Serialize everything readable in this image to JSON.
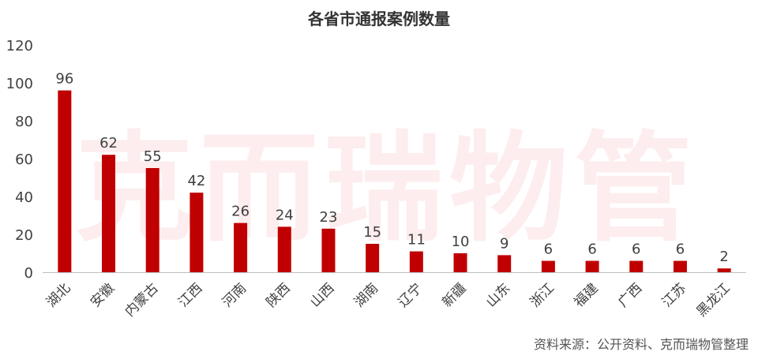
{
  "watermark": "克而瑞物管",
  "source": "资料来源：公开资料、克而瑞物管整理",
  "colors": {
    "bar": "#c00000",
    "axis": "#bfbfbf",
    "text": "#404040"
  },
  "chart_data": {
    "type": "bar",
    "title": "各省市通报案例数量",
    "xlabel": "",
    "ylabel": "",
    "ylim": [
      0,
      120
    ],
    "yticks": [
      0,
      20,
      40,
      60,
      80,
      100,
      120
    ],
    "grid": false,
    "legend": "none",
    "categories": [
      "湖北",
      "安徽",
      "内蒙古",
      "江西",
      "河南",
      "陕西",
      "山西",
      "湖南",
      "辽宁",
      "新疆",
      "山东",
      "浙江",
      "福建",
      "广西",
      "江苏",
      "黑龙江"
    ],
    "values": [
      96,
      62,
      55,
      42,
      26,
      24,
      23,
      15,
      11,
      10,
      9,
      6,
      6,
      6,
      6,
      2
    ]
  }
}
